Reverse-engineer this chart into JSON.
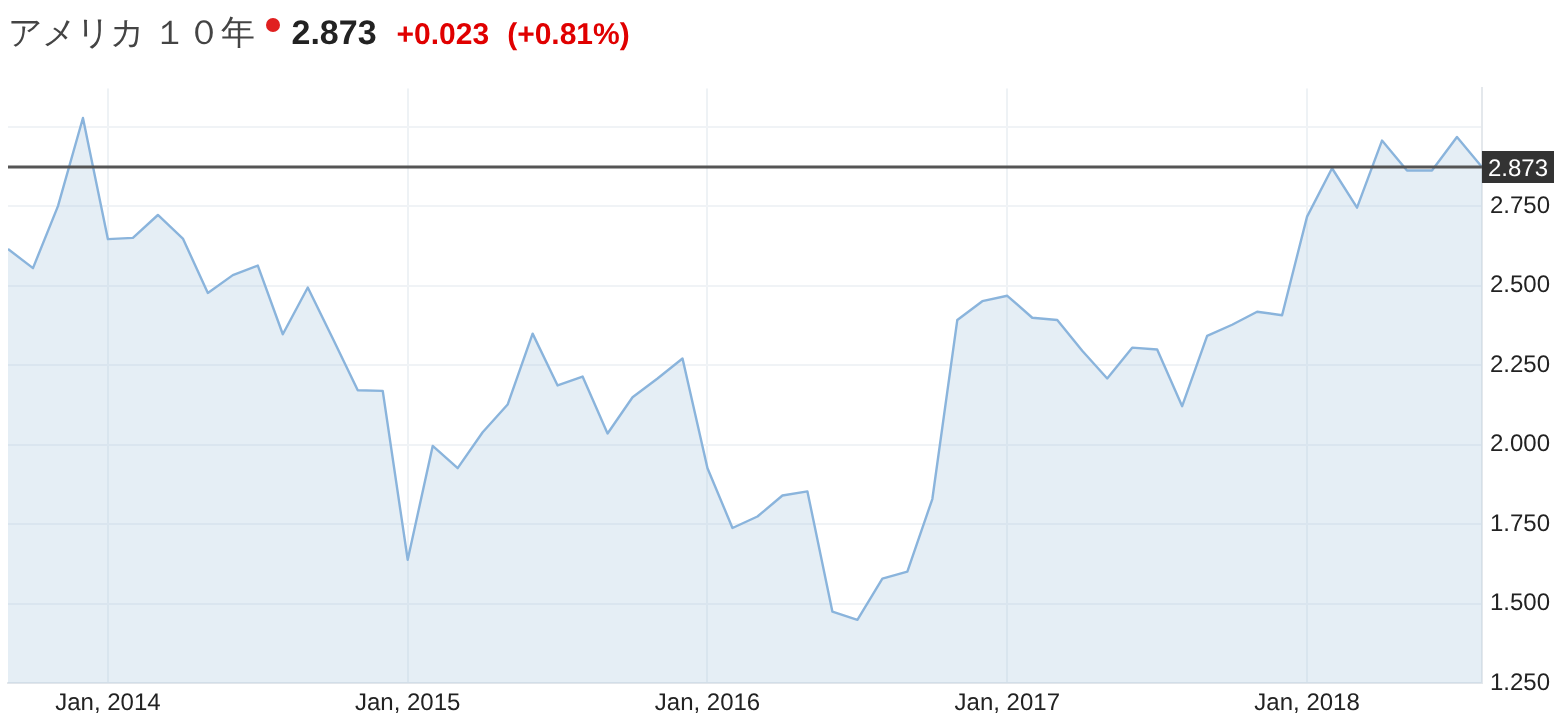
{
  "chart_data": {
    "type": "area",
    "title": "アメリカ １０年",
    "subtitle": "2.873",
    "annotations": [
      "+0.023",
      "(+0.81%)"
    ],
    "x": [
      "2013-09",
      "2013-10",
      "2013-11",
      "2013-12",
      "2014-01",
      "2014-02",
      "2014-03",
      "2014-04",
      "2014-05",
      "2014-06",
      "2014-07",
      "2014-08",
      "2014-09",
      "2014-10",
      "2014-11",
      "2014-12",
      "2015-01",
      "2015-02",
      "2015-03",
      "2015-04",
      "2015-05",
      "2015-06",
      "2015-07",
      "2015-08",
      "2015-09",
      "2015-10",
      "2015-11",
      "2015-12",
      "2016-01",
      "2016-02",
      "2016-03",
      "2016-04",
      "2016-05",
      "2016-06",
      "2016-07",
      "2016-08",
      "2016-09",
      "2016-10",
      "2016-11",
      "2016-12",
      "2017-01",
      "2017-02",
      "2017-03",
      "2017-04",
      "2017-05",
      "2017-06",
      "2017-07",
      "2017-08",
      "2017-09",
      "2017-10",
      "2017-11",
      "2017-12",
      "2018-01",
      "2018-02",
      "2018-03",
      "2018-04",
      "2018-05",
      "2018-06",
      "2018-07",
      "2018-08"
    ],
    "series": [
      {
        "color": "#8ab4dc",
        "values": [
          2.615,
          2.555,
          2.75,
          3.027,
          2.646,
          2.65,
          2.722,
          2.648,
          2.477,
          2.533,
          2.563,
          2.347,
          2.494,
          2.334,
          2.171,
          2.169,
          1.638,
          1.996,
          1.926,
          2.039,
          2.126,
          2.349,
          2.186,
          2.214,
          2.035,
          2.149,
          2.208,
          2.271,
          1.926,
          1.738,
          1.774,
          1.84,
          1.853,
          1.475,
          1.449,
          1.579,
          1.601,
          1.829,
          2.392,
          2.451,
          2.468,
          2.399,
          2.392,
          2.295,
          2.208,
          2.305,
          2.299,
          2.121,
          2.342,
          2.377,
          2.418,
          2.407,
          2.717,
          2.869,
          2.745,
          2.956,
          2.862,
          2.862,
          2.967,
          2.873
        ]
      }
    ],
    "xlim": [
      "2013-09",
      "2018-08"
    ],
    "xticks": [
      {
        "value": "2014-01",
        "label": "Jan, 2014"
      },
      {
        "value": "2015-01",
        "label": "Jan, 2015"
      },
      {
        "value": "2016-01",
        "label": "Jan, 2016"
      },
      {
        "value": "2017-01",
        "label": "Jan, 2017"
      },
      {
        "value": "2018-01",
        "label": "Jan, 2018"
      }
    ],
    "ylim": [
      1.25,
      3.12
    ],
    "yticks": [
      {
        "value": 1.25,
        "label": "1.250"
      },
      {
        "value": 1.5,
        "label": "1.500"
      },
      {
        "value": 1.75,
        "label": "1.750"
      },
      {
        "value": 2,
        "label": "2.000"
      },
      {
        "value": 2.25,
        "label": "2.250"
      },
      {
        "value": 2.5,
        "label": "2.500"
      },
      {
        "value": 2.75,
        "label": "2.750"
      },
      {
        "value": 3,
        "label": null
      }
    ],
    "ref_lines": [
      {
        "axis": "y",
        "value": 2.873,
        "label": "2.873",
        "color": "#555555"
      }
    ],
    "grid": true,
    "legend": false,
    "marker": "none",
    "line_style": "solid"
  }
}
